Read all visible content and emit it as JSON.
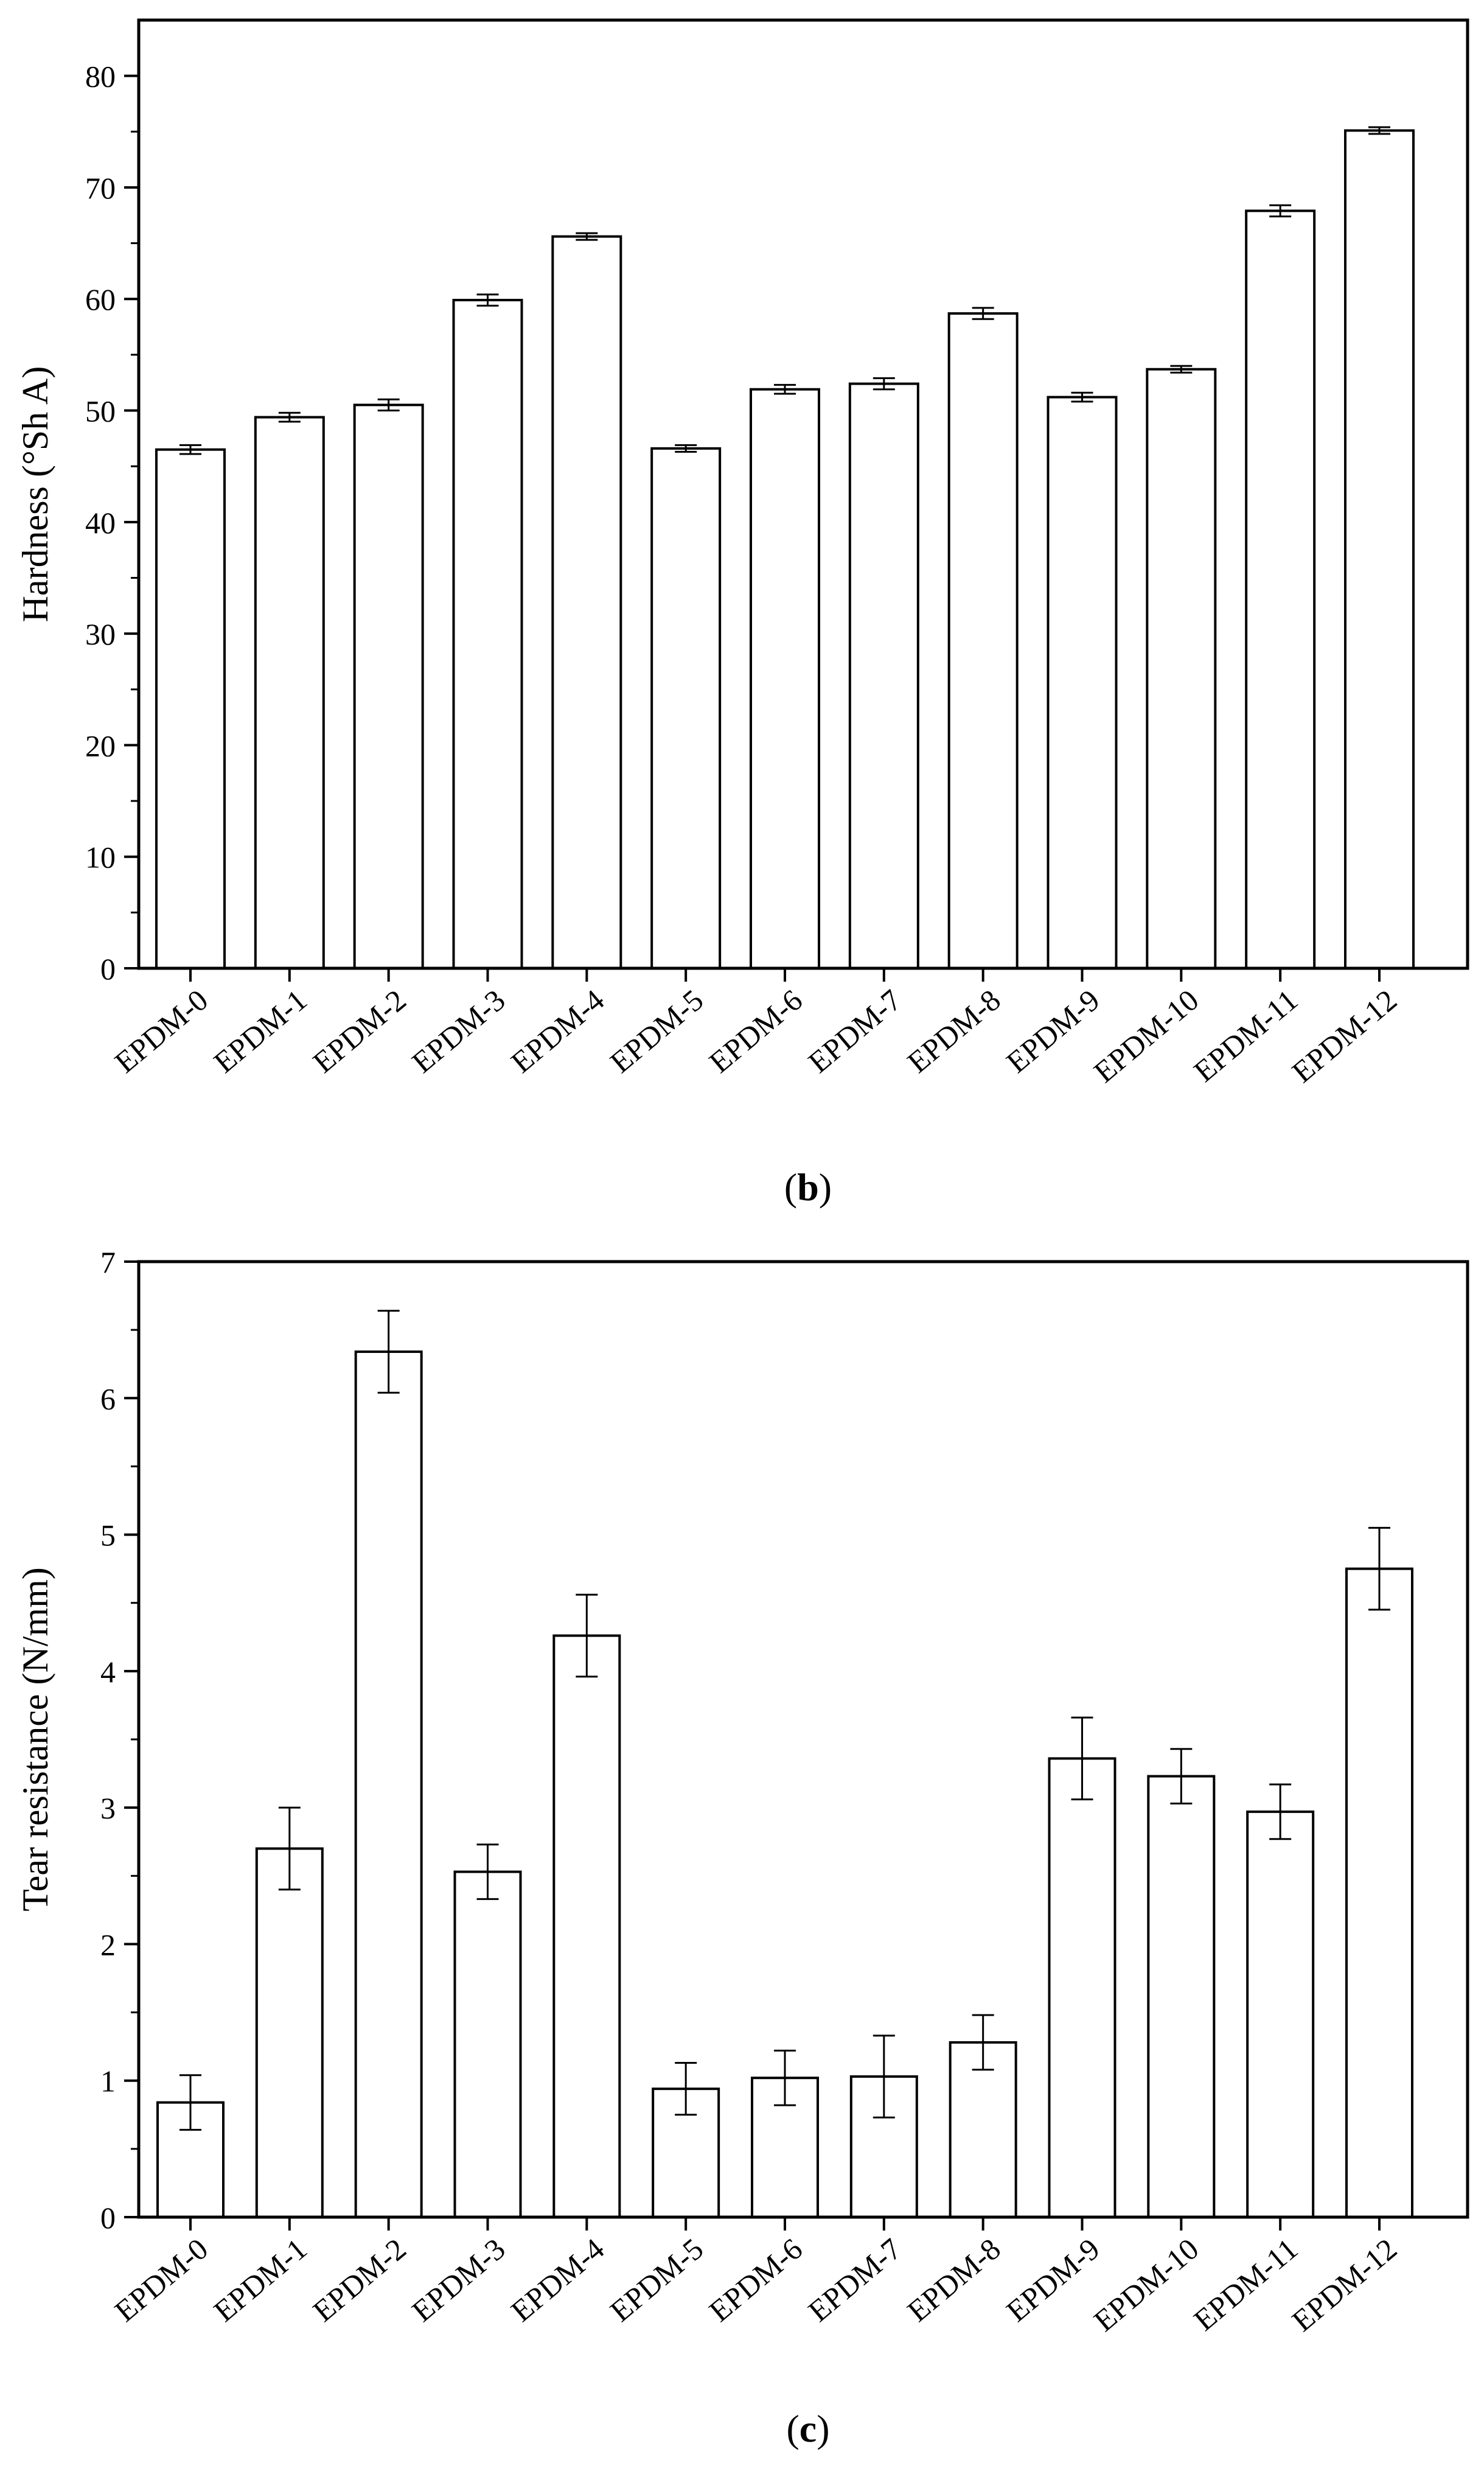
{
  "chart_data": [
    {
      "type": "bar",
      "panel_label": "b",
      "title": "",
      "xlabel": "",
      "ylabel": "Hardness (°Sh A)",
      "categories": [
        "EPDM-0",
        "EPDM-1",
        "EPDM-2",
        "EPDM-3",
        "EPDM-4",
        "EPDM-5",
        "EPDM-6",
        "EPDM-7",
        "EPDM-8",
        "EPDM-9",
        "EPDM-10",
        "EPDM-11",
        "EPDM-12"
      ],
      "values": [
        46.5,
        49.4,
        50.5,
        59.9,
        65.6,
        46.6,
        51.9,
        52.4,
        58.7,
        51.2,
        53.7,
        67.9,
        75.1
      ],
      "errors": [
        0.4,
        0.4,
        0.5,
        0.5,
        0.3,
        0.3,
        0.4,
        0.5,
        0.5,
        0.4,
        0.3,
        0.5,
        0.3
      ],
      "ylim": [
        0,
        85
      ],
      "yticks": [
        0,
        10,
        20,
        30,
        40,
        50,
        60,
        70,
        80
      ],
      "ytick_labels": [
        "0",
        "10",
        "20",
        "30",
        "40",
        "50",
        "60",
        "70",
        "80"
      ],
      "minor_tick_step": 5,
      "grid": false,
      "legend": "none"
    },
    {
      "type": "bar",
      "panel_label": "c",
      "title": "",
      "xlabel": "",
      "ylabel": "Tear resistance (N/mm)",
      "categories": [
        "EPDM-0",
        "EPDM-1",
        "EPDM-2",
        "EPDM-3",
        "EPDM-4",
        "EPDM-5",
        "EPDM-6",
        "EPDM-7",
        "EPDM-8",
        "EPDM-9",
        "EPDM-10",
        "EPDM-11",
        "EPDM-12"
      ],
      "values": [
        0.84,
        2.7,
        6.34,
        2.53,
        4.26,
        0.94,
        1.02,
        1.03,
        1.28,
        3.36,
        3.23,
        2.97,
        4.75
      ],
      "errors": [
        0.2,
        0.3,
        0.3,
        0.2,
        0.3,
        0.19,
        0.2,
        0.3,
        0.2,
        0.3,
        0.2,
        0.2,
        0.3
      ],
      "ylim": [
        0,
        7
      ],
      "yticks": [
        0,
        1,
        2,
        3,
        4,
        5,
        6,
        7
      ],
      "ytick_labels": [
        "0",
        "1",
        "2",
        "3",
        "4",
        "5",
        "6",
        "7"
      ],
      "minor_tick_step": 0.5,
      "grid": false,
      "legend": "none"
    }
  ]
}
